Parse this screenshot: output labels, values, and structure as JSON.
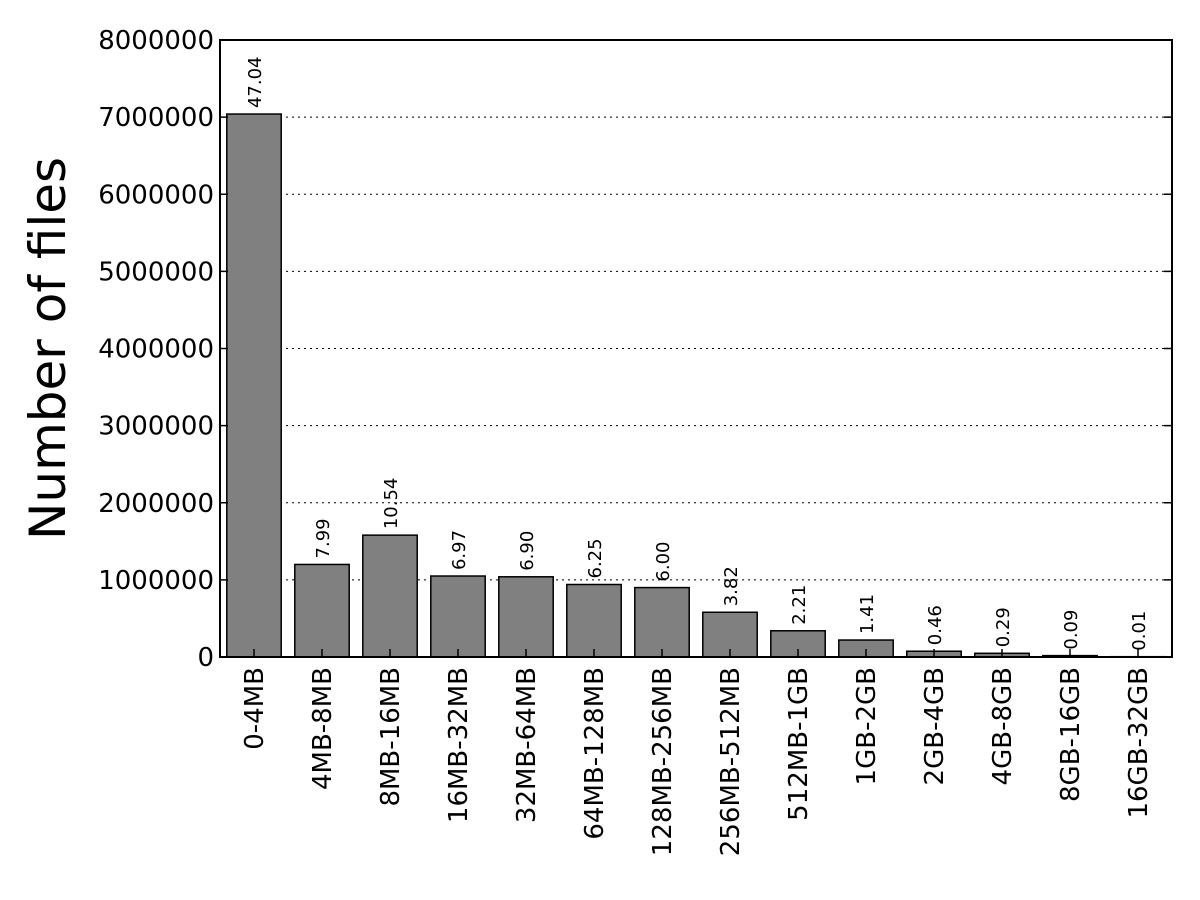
{
  "chart_data": {
    "type": "bar",
    "title": "",
    "xlabel": "",
    "ylabel": "Number of files",
    "categories": [
      "0-4MB",
      "4MB-8MB",
      "8MB-16MB",
      "16MB-32MB",
      "32MB-64MB",
      "64MB-128MB",
      "128MB-256MB",
      "256MB-512MB",
      "512MB-1GB",
      "1GB-2GB",
      "2GB-4GB",
      "4GB-8GB",
      "8GB-16GB",
      "16GB-32GB"
    ],
    "values": [
      7040000,
      1200000,
      1580000,
      1050000,
      1040000,
      940000,
      900000,
      580000,
      340000,
      220000,
      75000,
      48000,
      18000,
      4000
    ],
    "data_labels": [
      "47.04",
      "7.99",
      "10.54",
      "6.97",
      "6.90",
      "6.25",
      "6.00",
      "3.82",
      "2.21",
      "1.41",
      "0.46",
      "0.29",
      "0.09",
      "0.01"
    ],
    "ylim": [
      0,
      8000000
    ],
    "yticks": [
      0,
      1000000,
      2000000,
      3000000,
      4000000,
      5000000,
      6000000,
      7000000,
      8000000
    ],
    "ytick_labels": [
      "0",
      "1000000",
      "2000000",
      "3000000",
      "4000000",
      "5000000",
      "6000000",
      "7000000",
      "8000000"
    ],
    "grid": "y-dotted",
    "bar_color": "#808080",
    "bar_edge_color": "#000000"
  }
}
